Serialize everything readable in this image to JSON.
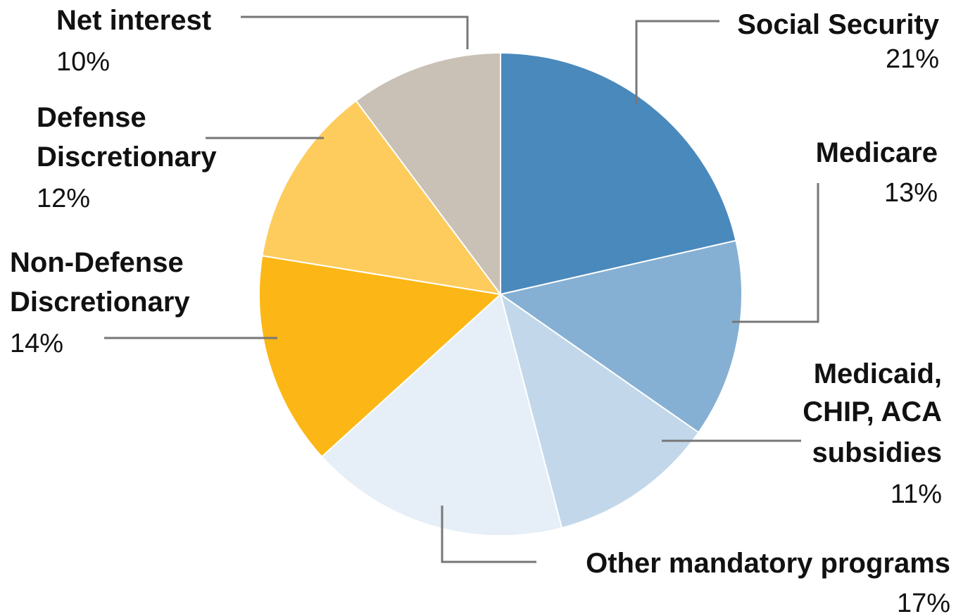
{
  "chart_data": {
    "type": "pie",
    "title": "",
    "slices": [
      {
        "label": [
          "Social Security"
        ],
        "percent_label": "21%",
        "value": 21,
        "color": "#4a89bc"
      },
      {
        "label": [
          "Medicare"
        ],
        "percent_label": "13%",
        "value": 13,
        "color": "#86b0d3"
      },
      {
        "label": [
          "Medicaid,",
          "CHIP, ACA",
          "subsidies"
        ],
        "percent_label": "11%",
        "value": 11,
        "color": "#c2d8ea"
      },
      {
        "label": [
          "Other mandatory programs"
        ],
        "percent_label": "17%",
        "value": 17,
        "color": "#e6eef7"
      },
      {
        "label": [
          "Non-Defense",
          "Discretionary"
        ],
        "percent_label": "14%",
        "value": 14,
        "color": "#fcb716"
      },
      {
        "label": [
          "Defense",
          "Discretionary"
        ],
        "percent_label": "12%",
        "value": 12,
        "color": "#fdcc5d"
      },
      {
        "label": [
          "Net interest"
        ],
        "percent_label": "10%",
        "value": 10,
        "color": "#c9c1b5"
      }
    ]
  }
}
